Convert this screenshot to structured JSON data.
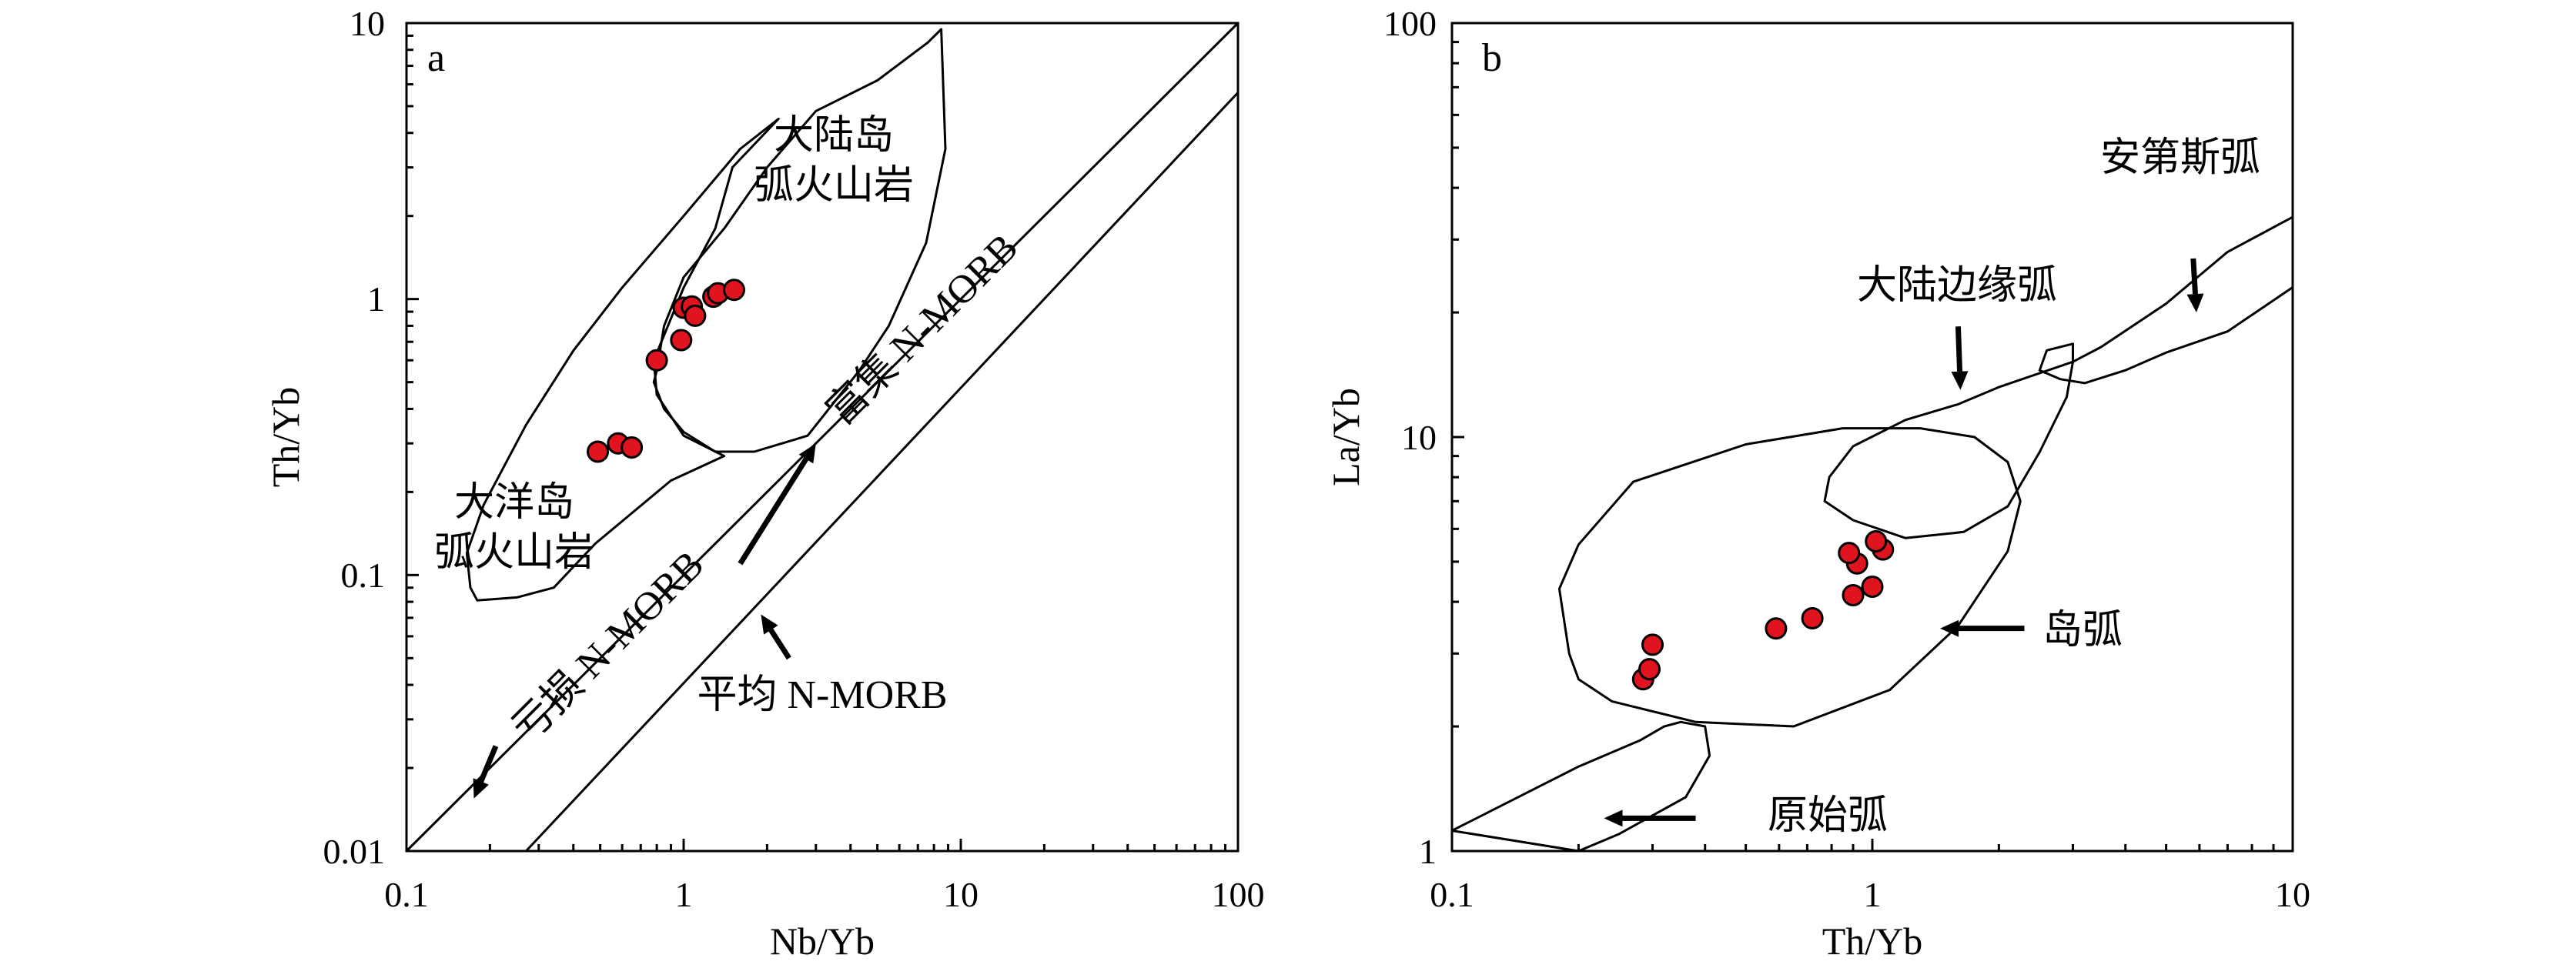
{
  "chart_data": [
    {
      "type": "scatter",
      "panel_label": "a",
      "xlabel": "Nb/Yb",
      "ylabel": "Th/Yb",
      "x_scale": "log",
      "y_scale": "log",
      "xlim": [
        0.1,
        100
      ],
      "ylim": [
        0.01,
        10
      ],
      "x_ticks": [
        "0.1",
        "1",
        "10",
        "100"
      ],
      "y_ticks": [
        "0.01",
        "0.1",
        "1",
        "10"
      ],
      "grid": false,
      "points": [
        {
          "x": 0.49,
          "y": 0.28
        },
        {
          "x": 0.58,
          "y": 0.3
        },
        {
          "x": 0.65,
          "y": 0.29
        },
        {
          "x": 0.8,
          "y": 0.6
        },
        {
          "x": 0.98,
          "y": 0.71
        },
        {
          "x": 1.0,
          "y": 0.93
        },
        {
          "x": 1.07,
          "y": 0.94
        },
        {
          "x": 1.1,
          "y": 0.87
        },
        {
          "x": 1.28,
          "y": 1.02
        },
        {
          "x": 1.33,
          "y": 1.05
        },
        {
          "x": 1.52,
          "y": 1.08
        }
      ],
      "regions": [
        {
          "label_lines": [
            "大陆岛",
            "弧火山岩"
          ],
          "boundary": [
            [
              0.8,
              0.55
            ],
            [
              0.78,
              0.5
            ],
            [
              0.85,
              0.4
            ],
            [
              1.0,
              0.33
            ],
            [
              1.3,
              0.28
            ],
            [
              1.8,
              0.28
            ],
            [
              2.8,
              0.32
            ],
            [
              4.3,
              0.55
            ],
            [
              5.5,
              0.8
            ],
            [
              7.5,
              1.6
            ],
            [
              8.8,
              3.5
            ],
            [
              8.5,
              9.5
            ],
            [
              7.6,
              8.5
            ],
            [
              5.0,
              6.2
            ],
            [
              3.0,
              4.8
            ],
            [
              2.0,
              3.0
            ],
            [
              1.4,
              1.8
            ],
            [
              1.0,
              1.2
            ],
            [
              0.85,
              0.8
            ]
          ]
        },
        {
          "label_lines": [
            "大洋岛",
            "弧火山岩"
          ],
          "boundary": [
            [
              0.17,
              0.09
            ],
            [
              0.18,
              0.081
            ],
            [
              0.25,
              0.083
            ],
            [
              0.34,
              0.09
            ],
            [
              0.48,
              0.13
            ],
            [
              0.9,
              0.22
            ],
            [
              1.4,
              0.27
            ],
            [
              1.0,
              0.32
            ],
            [
              0.8,
              0.45
            ],
            [
              0.78,
              0.6
            ],
            [
              1.0,
              1.1
            ],
            [
              1.3,
              1.8
            ],
            [
              1.5,
              3.0
            ],
            [
              2.2,
              4.5
            ],
            [
              1.6,
              3.5
            ],
            [
              1.0,
              2.0
            ],
            [
              0.6,
              1.1
            ],
            [
              0.4,
              0.65
            ],
            [
              0.27,
              0.35
            ],
            [
              0.19,
              0.18
            ],
            [
              0.165,
              0.12
            ]
          ]
        }
      ],
      "reference_lines": [
        {
          "name": "亏损 N-MORB",
          "points": [
            [
              0.1,
              0.01
            ],
            [
              100,
              10
            ]
          ]
        },
        {
          "name": "富集 N-MORB",
          "points": [
            [
              0.27,
              0.01
            ],
            [
              100,
              5.6
            ]
          ]
        }
      ],
      "annotations": [
        {
          "text": "亏损 N-MORB",
          "arrow_from": [
            0.21,
            0.024
          ],
          "arrow_to": [
            0.175,
            0.0155
          ]
        },
        {
          "text": "富集 N-MORB",
          "arrow_from": [
            1.6,
            0.11
          ],
          "arrow_to": [
            3.0,
            0.3
          ]
        },
        {
          "text": "平均 N-MORB",
          "arrow_from": [
            2.4,
            0.05
          ],
          "arrow_to": [
            1.9,
            0.072
          ]
        }
      ]
    },
    {
      "type": "scatter",
      "panel_label": "b",
      "xlabel": "Th/Yb",
      "ylabel": "La/Yb",
      "x_scale": "log",
      "y_scale": "log",
      "xlim": [
        0.1,
        10
      ],
      "ylim": [
        1,
        100
      ],
      "x_ticks": [
        "0.1",
        "1",
        "10"
      ],
      "y_ticks": [
        "1",
        "10",
        "100"
      ],
      "grid": false,
      "points": [
        {
          "x": 0.285,
          "y": 2.6
        },
        {
          "x": 0.295,
          "y": 2.75
        },
        {
          "x": 0.3,
          "y": 3.15
        },
        {
          "x": 0.59,
          "y": 3.45
        },
        {
          "x": 0.72,
          "y": 3.65
        },
        {
          "x": 0.9,
          "y": 4.15
        },
        {
          "x": 1.0,
          "y": 4.35
        },
        {
          "x": 0.92,
          "y": 4.95
        },
        {
          "x": 0.88,
          "y": 5.25
        },
        {
          "x": 1.06,
          "y": 5.35
        },
        {
          "x": 1.02,
          "y": 5.6
        }
      ],
      "regions": [
        {
          "label": "岛弧",
          "boundary": [
            [
              0.19,
              3.0
            ],
            [
              0.2,
              2.6
            ],
            [
              0.24,
              2.3
            ],
            [
              0.38,
              2.05
            ],
            [
              0.65,
              2.0
            ],
            [
              1.1,
              2.45
            ],
            [
              1.6,
              3.5
            ],
            [
              2.1,
              5.3
            ],
            [
              2.25,
              7.0
            ],
            [
              2.1,
              8.7
            ],
            [
              1.75,
              10.0
            ],
            [
              1.3,
              10.5
            ],
            [
              0.85,
              10.5
            ],
            [
              0.5,
              9.6
            ],
            [
              0.27,
              7.8
            ],
            [
              0.2,
              5.5
            ],
            [
              0.18,
              4.3
            ]
          ]
        },
        {
          "label": "大陆边缘弧",
          "boundary": [
            [
              0.77,
              7.0
            ],
            [
              0.79,
              8.0
            ],
            [
              0.9,
              9.5
            ],
            [
              1.2,
              11.0
            ],
            [
              1.6,
              12.0
            ],
            [
              2.0,
              13.2
            ],
            [
              3.0,
              15.2
            ],
            [
              2.9,
              12.5
            ],
            [
              2.5,
              9.2
            ],
            [
              2.1,
              6.8
            ],
            [
              1.65,
              5.9
            ],
            [
              1.2,
              5.7
            ],
            [
              0.9,
              6.3
            ]
          ]
        },
        {
          "label": "安第斯弧",
          "boundary": [
            [
              3.0,
              15.2
            ],
            [
              3.5,
              16.5
            ],
            [
              5.0,
              21.0
            ],
            [
              7.0,
              28.0
            ],
            [
              10.0,
              34.0
            ],
            [
              10.0,
              23.0
            ],
            [
              7.0,
              18.0
            ],
            [
              5.0,
              16.0
            ],
            [
              4.0,
              14.5
            ],
            [
              3.2,
              13.5
            ],
            [
              2.8,
              13.8
            ],
            [
              2.5,
              14.5
            ],
            [
              2.6,
              16.2
            ],
            [
              3.0,
              16.8
            ],
            [
              3.0,
              15.2
            ]
          ]
        },
        {
          "label": "原始弧",
          "boundary": [
            [
              0.1,
              1.12
            ],
            [
              0.2,
              1.6
            ],
            [
              0.28,
              1.85
            ],
            [
              0.32,
              2.0
            ],
            [
              0.35,
              2.05
            ],
            [
              0.4,
              2.0
            ],
            [
              0.41,
              1.7
            ],
            [
              0.36,
              1.35
            ],
            [
              0.25,
              1.1
            ],
            [
              0.2,
              1.0
            ]
          ]
        }
      ],
      "annotations": [
        {
          "text": "安第斯弧",
          "arrow_from": [
            5.8,
            27.0
          ],
          "arrow_to": [
            5.9,
            20.0
          ]
        },
        {
          "text": "大陆边缘弧",
          "arrow_from": [
            1.6,
            18.5
          ],
          "arrow_to": [
            1.62,
            13.0
          ]
        },
        {
          "text": "岛弧",
          "arrow_from": [
            2.3,
            3.45
          ],
          "arrow_to": [
            1.45,
            3.45
          ]
        },
        {
          "text": "原始弧",
          "arrow_from": [
            0.38,
            1.2
          ],
          "arrow_to": [
            0.23,
            1.2
          ]
        }
      ]
    }
  ]
}
